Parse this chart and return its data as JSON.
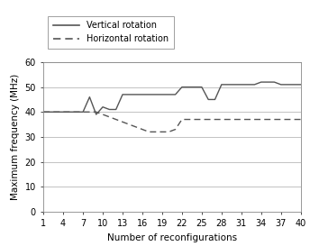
{
  "x": [
    1,
    2,
    3,
    4,
    5,
    6,
    7,
    8,
    9,
    10,
    11,
    12,
    13,
    14,
    15,
    16,
    17,
    18,
    19,
    20,
    21,
    22,
    23,
    24,
    25,
    26,
    27,
    28,
    29,
    30,
    31,
    32,
    33,
    34,
    35,
    36,
    37,
    38,
    39,
    40
  ],
  "vertical": [
    40,
    40,
    40,
    40,
    40,
    40,
    40,
    46,
    39,
    42,
    41,
    41,
    47,
    47,
    47,
    47,
    47,
    47,
    47,
    47,
    47,
    50,
    50,
    50,
    50,
    45,
    45,
    51,
    51,
    51,
    51,
    51,
    51,
    52,
    52,
    52,
    51,
    51,
    51,
    51
  ],
  "horizontal": [
    40,
    40,
    40,
    40,
    40,
    40,
    40,
    40,
    40,
    39,
    38,
    37,
    36,
    35,
    34,
    33,
    32,
    32,
    32,
    32,
    33,
    37,
    37,
    37,
    37,
    37,
    37,
    37,
    37,
    37,
    37,
    37,
    37,
    37,
    37,
    37,
    37,
    37,
    37,
    37
  ],
  "xlabel": "Number of reconfigurations",
  "ylabel": "Maximum frequency (MHz)",
  "legend_vertical": "Vertical rotation",
  "legend_horizontal": "Horizontal rotation",
  "ylim": [
    0,
    60
  ],
  "yticks": [
    0,
    10,
    20,
    30,
    40,
    50,
    60
  ],
  "xticks": [
    1,
    4,
    7,
    10,
    13,
    16,
    19,
    22,
    25,
    28,
    31,
    34,
    37,
    40
  ],
  "line_color": "#555555",
  "bg_color": "#ffffff"
}
